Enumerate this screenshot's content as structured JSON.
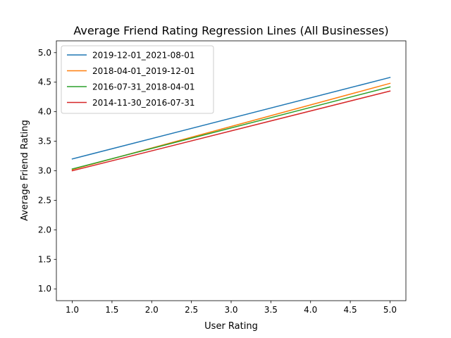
{
  "chart_data": {
    "type": "line",
    "title": "Average Friend Rating Regression Lines (All Businesses)",
    "xlabel": "User Rating",
    "ylabel": "Average Friend Rating",
    "xlim": [
      0.8,
      5.2
    ],
    "ylim": [
      0.8,
      5.2
    ],
    "x_ticks": [
      1.0,
      1.5,
      2.0,
      2.5,
      3.0,
      3.5,
      4.0,
      4.5,
      5.0
    ],
    "y_ticks": [
      1.0,
      1.5,
      2.0,
      2.5,
      3.0,
      3.5,
      4.0,
      4.5,
      5.0
    ],
    "x_tick_labels": [
      "1.0",
      "1.5",
      "2.0",
      "2.5",
      "3.0",
      "3.5",
      "4.0",
      "4.5",
      "5.0"
    ],
    "y_tick_labels": [
      "1.0",
      "1.5",
      "2.0",
      "2.5",
      "3.0",
      "3.5",
      "4.0",
      "4.5",
      "5.0"
    ],
    "grid": false,
    "legend_position": "top-left",
    "series": [
      {
        "name": "2019-12-01_2021-08-01",
        "color": "#1f77b4",
        "x": [
          1.0,
          5.0
        ],
        "y": [
          3.2,
          4.58
        ]
      },
      {
        "name": "2018-04-01_2019-12-01",
        "color": "#ff7f0e",
        "x": [
          1.0,
          5.0
        ],
        "y": [
          3.02,
          4.48
        ]
      },
      {
        "name": "2016-07-31_2018-04-01",
        "color": "#2ca02c",
        "x": [
          1.0,
          5.0
        ],
        "y": [
          3.03,
          4.42
        ]
      },
      {
        "name": "2014-11-30_2016-07-31",
        "color": "#d62728",
        "x": [
          1.0,
          5.0
        ],
        "y": [
          3.0,
          4.35
        ]
      }
    ]
  }
}
